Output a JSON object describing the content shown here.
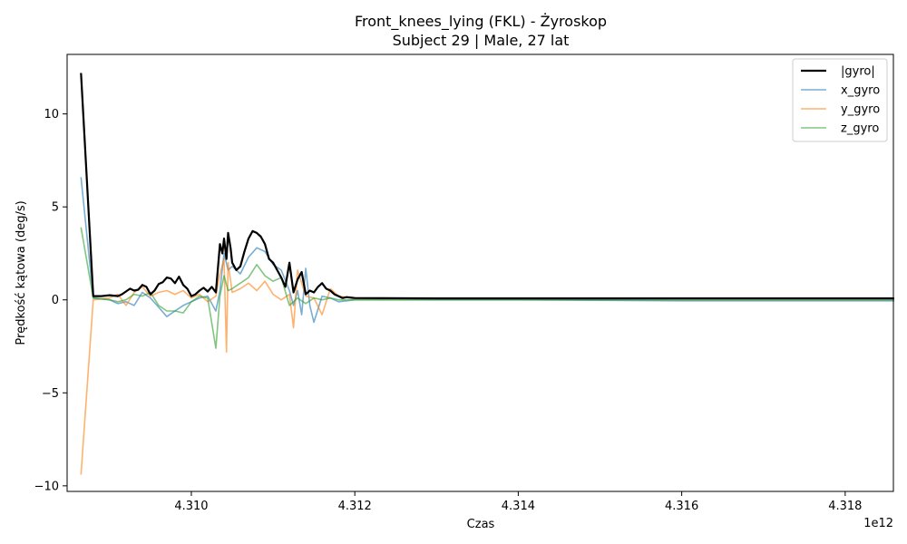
{
  "chart_data": {
    "type": "line",
    "title": "Front_knees_lying (FKL) - Żyroskop",
    "subtitle": "Subject 29 | Male, 27 lat",
    "xlabel": "Czas",
    "ylabel": "Prędkość kątowa (deg/s)",
    "x_offset_label": "1e12",
    "xlim": [
      4.30848,
      4.31859
    ],
    "ylim": [
      -10.3,
      13.2
    ],
    "xticks": [
      4.31,
      4.312,
      4.314,
      4.316,
      4.318
    ],
    "xtick_labels": [
      "4.310",
      "4.312",
      "4.314",
      "4.316",
      "4.318"
    ],
    "yticks": [
      -10,
      -5,
      0,
      5,
      10
    ],
    "ytick_labels": [
      "−10",
      "−5",
      "0",
      "5",
      "10"
    ],
    "legend_position": "top-right",
    "grid": false,
    "series": [
      {
        "name": "|gyro|",
        "color": "#000000",
        "x": [
          4.30865,
          4.3088,
          4.3089,
          4.309,
          4.3091,
          4.30915,
          4.3092,
          4.30925,
          4.3093,
          4.30935,
          4.3094,
          4.30945,
          4.3095,
          4.30955,
          4.3096,
          4.30965,
          4.3097,
          4.30975,
          4.3098,
          4.30985,
          4.3099,
          4.30995,
          4.31,
          4.31005,
          4.3101,
          4.31015,
          4.3102,
          4.31025,
          4.3103,
          4.31035,
          4.31038,
          4.3104,
          4.31043,
          4.31045,
          4.31048,
          4.3105,
          4.31055,
          4.3106,
          4.31065,
          4.3107,
          4.31075,
          4.3108,
          4.31085,
          4.3109,
          4.31095,
          4.311,
          4.31105,
          4.3111,
          4.31115,
          4.3112,
          4.31125,
          4.3113,
          4.31135,
          4.3114,
          4.31145,
          4.3115,
          4.31155,
          4.3116,
          4.31165,
          4.3117,
          4.31175,
          4.3118,
          4.31185,
          4.3119,
          4.312,
          4.313,
          4.314,
          4.315,
          4.316,
          4.317,
          4.3186
        ],
        "y": [
          12.2,
          0.2,
          0.2,
          0.25,
          0.2,
          0.3,
          0.45,
          0.6,
          0.5,
          0.55,
          0.8,
          0.7,
          0.3,
          0.5,
          0.85,
          0.95,
          1.2,
          1.15,
          0.9,
          1.25,
          0.8,
          0.6,
          0.2,
          0.3,
          0.5,
          0.65,
          0.45,
          0.7,
          0.4,
          3.0,
          2.5,
          3.3,
          2.2,
          3.6,
          2.8,
          2.0,
          1.6,
          1.8,
          2.6,
          3.3,
          3.7,
          3.6,
          3.4,
          3.0,
          2.2,
          2.0,
          1.6,
          1.2,
          0.7,
          2.0,
          0.4,
          1.1,
          1.5,
          0.3,
          0.5,
          0.4,
          0.7,
          0.9,
          0.6,
          0.5,
          0.3,
          0.2,
          0.1,
          0.15,
          0.1,
          0.08,
          0.08,
          0.08,
          0.08,
          0.08,
          0.08
        ]
      },
      {
        "name": "x_gyro",
        "color": "#1f77b4",
        "x": [
          4.30865,
          4.3088,
          4.309,
          4.3091,
          4.3092,
          4.3093,
          4.3094,
          4.3095,
          4.3096,
          4.3097,
          4.3098,
          4.3099,
          4.31,
          4.3101,
          4.3102,
          4.3103,
          4.31035,
          4.3104,
          4.31045,
          4.3105,
          4.3106,
          4.3107,
          4.3108,
          4.3109,
          4.311,
          4.3111,
          4.3112,
          4.31125,
          4.3113,
          4.31135,
          4.3114,
          4.31145,
          4.3115,
          4.3116,
          4.3117,
          4.3118,
          4.312,
          4.314,
          4.316,
          4.3186
        ],
        "y": [
          6.6,
          0.1,
          0.0,
          -0.2,
          -0.1,
          -0.3,
          0.4,
          0.1,
          -0.4,
          -0.9,
          -0.6,
          -0.3,
          -0.1,
          0.1,
          0.2,
          -0.6,
          0.5,
          2.5,
          1.6,
          1.8,
          1.4,
          2.3,
          2.8,
          2.6,
          1.9,
          1.6,
          0.5,
          -0.3,
          0.5,
          -0.8,
          1.7,
          -0.3,
          -1.2,
          0.2,
          0.1,
          -0.1,
          0.0,
          0.0,
          -0.05,
          -0.05
        ]
      },
      {
        "name": "y_gyro",
        "color": "#ff7f0e",
        "x": [
          4.30865,
          4.3088,
          4.309,
          4.3091,
          4.3092,
          4.3093,
          4.3094,
          4.3095,
          4.3096,
          4.3097,
          4.3098,
          4.3099,
          4.31,
          4.3101,
          4.3102,
          4.3103,
          4.31035,
          4.3104,
          4.31043,
          4.31045,
          4.3105,
          4.3106,
          4.3107,
          4.3108,
          4.3109,
          4.311,
          4.3111,
          4.3112,
          4.31125,
          4.3113,
          4.3114,
          4.3115,
          4.3116,
          4.3117,
          4.3118,
          4.312,
          4.313,
          4.314,
          4.315,
          4.316,
          4.317,
          4.3186
        ],
        "y": [
          -9.4,
          0.0,
          0.1,
          0.3,
          -0.3,
          0.4,
          0.7,
          0.2,
          0.4,
          0.5,
          0.3,
          0.5,
          0.1,
          0.3,
          -0.1,
          0.2,
          1.4,
          2.2,
          -2.8,
          2.0,
          0.4,
          0.6,
          0.9,
          0.5,
          1.0,
          0.3,
          0.0,
          0.3,
          -1.5,
          1.6,
          0.2,
          0.1,
          -0.8,
          0.6,
          0.2,
          0.05,
          0.05,
          0.05,
          0.05,
          0.05,
          0.05,
          0.05
        ]
      },
      {
        "name": "z_gyro",
        "color": "#2ca02c",
        "x": [
          4.30865,
          4.3088,
          4.309,
          4.3091,
          4.3092,
          4.3093,
          4.3094,
          4.3095,
          4.3096,
          4.3097,
          4.3098,
          4.3099,
          4.31,
          4.3101,
          4.3102,
          4.3103,
          4.31035,
          4.3104,
          4.31045,
          4.3105,
          4.3106,
          4.3107,
          4.3108,
          4.3109,
          4.311,
          4.3111,
          4.3112,
          4.3113,
          4.3114,
          4.3115,
          4.3116,
          4.3117,
          4.3118,
          4.312,
          4.314,
          4.316,
          4.3186
        ],
        "y": [
          3.9,
          0.1,
          0.0,
          -0.1,
          0.0,
          0.3,
          0.2,
          0.4,
          -0.3,
          -0.6,
          -0.6,
          -0.7,
          -0.1,
          0.2,
          0.1,
          -2.6,
          0.2,
          1.3,
          0.5,
          0.6,
          0.9,
          1.2,
          1.9,
          1.3,
          1.0,
          1.2,
          -0.3,
          0.1,
          -0.2,
          0.1,
          0.0,
          0.1,
          0.0,
          0.0,
          0.0,
          0.0,
          0.0
        ]
      }
    ]
  }
}
